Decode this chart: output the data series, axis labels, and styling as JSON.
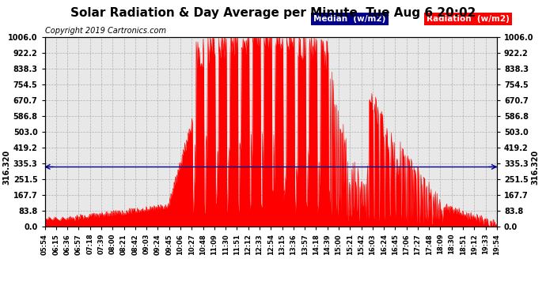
{
  "title": "Solar Radiation & Day Average per Minute  Tue Aug 6 20:02",
  "copyright_text": "Copyright 2019 Cartronics.com",
  "median_value": 316.32,
  "median_label": "316.320",
  "ymax": 1006.0,
  "yticks": [
    0.0,
    83.8,
    167.7,
    251.5,
    335.3,
    419.2,
    503.0,
    586.8,
    670.7,
    754.5,
    838.3,
    922.2,
    1006.0
  ],
  "background_color": "#ffffff",
  "plot_bg_color": "#e8e8e8",
  "bar_color": "#ff0000",
  "median_line_color": "#00008b",
  "legend_median_color": "#00008b",
  "legend_radiation_color": "#ff0000",
  "legend_median": "Median  (w/m2)",
  "legend_radiation": "Radiation  (w/m2)",
  "x_tick_labels": [
    "05:54",
    "06:15",
    "06:36",
    "06:57",
    "07:18",
    "07:39",
    "08:00",
    "08:21",
    "08:42",
    "09:03",
    "09:24",
    "09:45",
    "10:06",
    "10:27",
    "10:48",
    "11:09",
    "11:30",
    "11:51",
    "12:12",
    "12:33",
    "12:54",
    "13:15",
    "13:36",
    "13:57",
    "14:18",
    "14:39",
    "15:00",
    "15:21",
    "15:42",
    "16:03",
    "16:24",
    "16:45",
    "17:06",
    "17:27",
    "17:48",
    "18:09",
    "18:30",
    "18:51",
    "19:12",
    "19:33",
    "19:54"
  ]
}
